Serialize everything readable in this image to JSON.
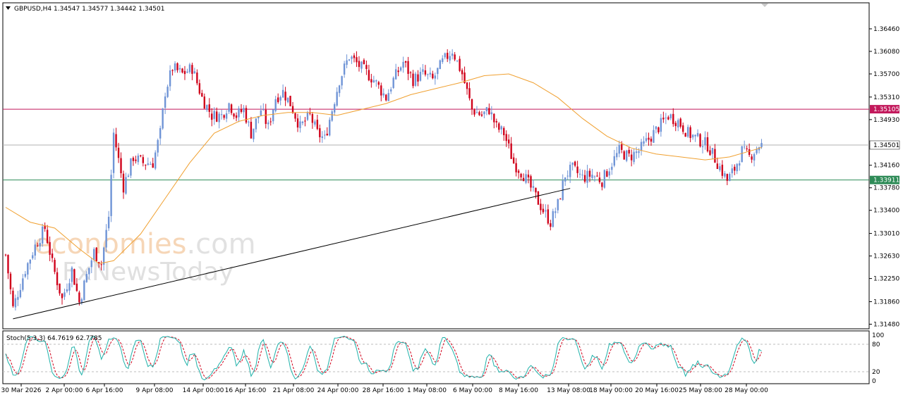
{
  "header": {
    "symbol_line": "GBPUSD,H4  1.34547 1.34577 1.34442 1.34501"
  },
  "watermark": {
    "line1_part1": "economies",
    "line1_part2": ".com",
    "line2": "FxNewsToday"
  },
  "colors": {
    "bull": "#6f94d6",
    "bear": "#d0021b",
    "ma": "#f0a030",
    "resistance": "#c2185b",
    "support": "#2e8b57",
    "current": "#b0b0b0",
    "trendline": "#000000",
    "stoch_main": "#20b2aa",
    "stoch_signal": "#d0021b",
    "grid_level": "#bdbdbd"
  },
  "chart_data": [
    {
      "type": "candlestick",
      "title": "GBPUSD,H4",
      "ohlc_header": {
        "open": 1.34547,
        "high": 1.34577,
        "low": 1.34442,
        "close": 1.34501
      },
      "y_ticks": [
        "1.36460",
        "1.36080",
        "1.35700",
        "1.35310",
        "1.34930",
        "1.34160",
        "1.33780",
        "1.33400",
        "1.33010",
        "1.32630",
        "1.32250",
        "1.31860",
        "1.31480"
      ],
      "ylim": [
        1.3145,
        1.3678
      ],
      "x_labels": [
        "30 Mar 2026",
        "2 Apr 00:00",
        "6 Apr 16:00",
        "9 Apr 08:00",
        "14 Apr 00:00",
        "16 Apr 16:00",
        "21 Apr 08:00",
        "24 Apr 00:00",
        "28 Apr 16:00",
        "1 May 08:00",
        "6 May 00:00",
        "8 May 16:00",
        "13 May 08:00",
        "18 May 00:00",
        "20 May 16:00",
        "25 May 08:00",
        "28 May 00:00"
      ],
      "price_levels": [
        {
          "name": "resistance",
          "value": 1.35105,
          "label": "1.35105"
        },
        {
          "name": "current",
          "value": 1.34501,
          "label": "1.34501"
        },
        {
          "name": "support",
          "value": 1.33911,
          "label": "1.33911"
        }
      ],
      "trendline": {
        "start": {
          "bar": 3,
          "price": 1.3157
        },
        "end": {
          "bar": 230,
          "price": 1.3377
        }
      },
      "close_path": [
        [
          0,
          1.3265
        ],
        [
          3,
          1.3175
        ],
        [
          8,
          1.324
        ],
        [
          12,
          1.328
        ],
        [
          16,
          1.331
        ],
        [
          19,
          1.325
        ],
        [
          23,
          1.319
        ],
        [
          27,
          1.324
        ],
        [
          30,
          1.3185
        ],
        [
          33,
          1.323
        ],
        [
          36,
          1.327
        ],
        [
          39,
          1.325
        ],
        [
          42,
          1.333
        ],
        [
          44,
          1.347
        ],
        [
          48,
          1.338
        ],
        [
          52,
          1.343
        ],
        [
          56,
          1.342
        ],
        [
          60,
          1.342
        ],
        [
          63,
          1.347
        ],
        [
          65,
          1.354
        ],
        [
          68,
          1.358
        ],
        [
          72,
          1.357
        ],
        [
          76,
          1.358
        ],
        [
          80,
          1.353
        ],
        [
          84,
          1.35
        ],
        [
          88,
          1.35
        ],
        [
          91,
          1.352
        ],
        [
          94,
          1.35
        ],
        [
          97,
          1.351
        ],
        [
          100,
          1.347
        ],
        [
          104,
          1.351
        ],
        [
          107,
          1.348
        ],
        [
          110,
          1.353
        ],
        [
          113,
          1.354
        ],
        [
          116,
          1.352
        ],
        [
          120,
          1.348
        ],
        [
          124,
          1.35
        ],
        [
          127,
          1.347
        ],
        [
          130,
          1.346
        ],
        [
          133,
          1.351
        ],
        [
          136,
          1.356
        ],
        [
          140,
          1.36
        ],
        [
          145,
          1.358
        ],
        [
          150,
          1.356
        ],
        [
          155,
          1.353
        ],
        [
          158,
          1.356
        ],
        [
          162,
          1.359
        ],
        [
          166,
          1.356
        ],
        [
          170,
          1.357
        ],
        [
          174,
          1.356
        ],
        [
          178,
          1.359
        ],
        [
          182,
          1.361
        ],
        [
          186,
          1.357
        ],
        [
          190,
          1.351
        ],
        [
          194,
          1.35
        ],
        [
          197,
          1.351
        ],
        [
          200,
          1.348
        ],
        [
          203,
          1.347
        ],
        [
          207,
          1.342
        ],
        [
          211,
          1.34
        ],
        [
          215,
          1.337
        ],
        [
          219,
          1.334
        ],
        [
          222,
          1.332
        ],
        [
          225,
          1.335
        ],
        [
          228,
          1.34
        ],
        [
          231,
          1.341
        ],
        [
          235,
          1.3395
        ],
        [
          239,
          1.34
        ],
        [
          243,
          1.339
        ],
        [
          247,
          1.342
        ],
        [
          250,
          1.344
        ],
        [
          254,
          1.343
        ],
        [
          258,
          1.344
        ],
        [
          262,
          1.346
        ],
        [
          266,
          1.348
        ],
        [
          270,
          1.35
        ],
        [
          274,
          1.349
        ],
        [
          278,
          1.347
        ],
        [
          282,
          1.346
        ],
        [
          286,
          1.345
        ],
        [
          290,
          1.342
        ],
        [
          294,
          1.339
        ],
        [
          297,
          1.341
        ],
        [
          300,
          1.344
        ],
        [
          303,
          1.343
        ],
        [
          307,
          1.345
        ]
      ],
      "moving_average_path": [
        [
          0,
          1.3345
        ],
        [
          10,
          1.332
        ],
        [
          20,
          1.331
        ],
        [
          30,
          1.3275
        ],
        [
          38,
          1.325
        ],
        [
          44,
          1.3255
        ],
        [
          55,
          1.33
        ],
        [
          65,
          1.336
        ],
        [
          75,
          1.342
        ],
        [
          85,
          1.347
        ],
        [
          95,
          1.349
        ],
        [
          105,
          1.35
        ],
        [
          115,
          1.3505
        ],
        [
          125,
          1.3505
        ],
        [
          135,
          1.35
        ],
        [
          145,
          1.351
        ],
        [
          155,
          1.352
        ],
        [
          165,
          1.3535
        ],
        [
          175,
          1.3545
        ],
        [
          185,
          1.3555
        ],
        [
          195,
          1.3567
        ],
        [
          205,
          1.357
        ],
        [
          215,
          1.3555
        ],
        [
          225,
          1.353
        ],
        [
          235,
          1.3495
        ],
        [
          245,
          1.3465
        ],
        [
          255,
          1.3445
        ],
        [
          265,
          1.3435
        ],
        [
          275,
          1.343
        ],
        [
          285,
          1.3425
        ],
        [
          295,
          1.343
        ],
        [
          305,
          1.3442
        ],
        [
          308,
          1.3446
        ]
      ],
      "bars_shown": 309
    },
    {
      "type": "line",
      "title": "Stoch(5,3,3) 64.7619 62.7785",
      "ylim": [
        0,
        100
      ],
      "y_ticks": [
        "100",
        "80",
        "20",
        "0"
      ],
      "levels": [
        20,
        80
      ],
      "series": [
        {
          "name": "main",
          "value": 64.7619
        },
        {
          "name": "signal",
          "value": 62.7785
        }
      ]
    }
  ]
}
